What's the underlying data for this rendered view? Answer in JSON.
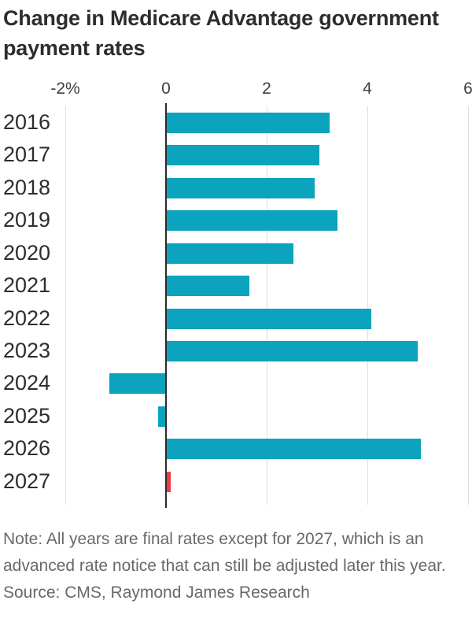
{
  "title": "Change in Medicare Advantage government payment rates",
  "note": "Note: All years are final rates except for 2027, which is an advanced rate notice that can still be adjusted later this year.",
  "source": "Source: CMS, Raymond James Research",
  "colors": {
    "bar": "#0ba3bd",
    "highlight_bar": "#ee3a47",
    "gridline": "#dedede",
    "zero_line": "#2b2b2b",
    "title_text": "#2d2d2d",
    "axis_text": "#3f3f3f",
    "note_text": "#686868"
  },
  "chart_data": {
    "type": "bar",
    "orientation": "horizontal",
    "title": "Change in Medicare Advantage government payment rates",
    "categories": [
      "2016",
      "2017",
      "2018",
      "2019",
      "2020",
      "2021",
      "2022",
      "2023",
      "2024",
      "2025",
      "2026",
      "2027"
    ],
    "values": [
      3.25,
      3.05,
      2.95,
      3.4,
      2.53,
      1.66,
      4.08,
      5.0,
      -1.12,
      -0.16,
      5.06,
      0.1
    ],
    "unit": "%",
    "highlighted_category": "2027",
    "x_ticks": [
      {
        "value": -2,
        "label": "-2%"
      },
      {
        "value": 0,
        "label": "0"
      },
      {
        "value": 2,
        "label": "2"
      },
      {
        "value": 4,
        "label": "4"
      },
      {
        "value": 6,
        "label": "6"
      }
    ],
    "xlim": [
      -2,
      6
    ],
    "grid": true,
    "legend": false
  }
}
